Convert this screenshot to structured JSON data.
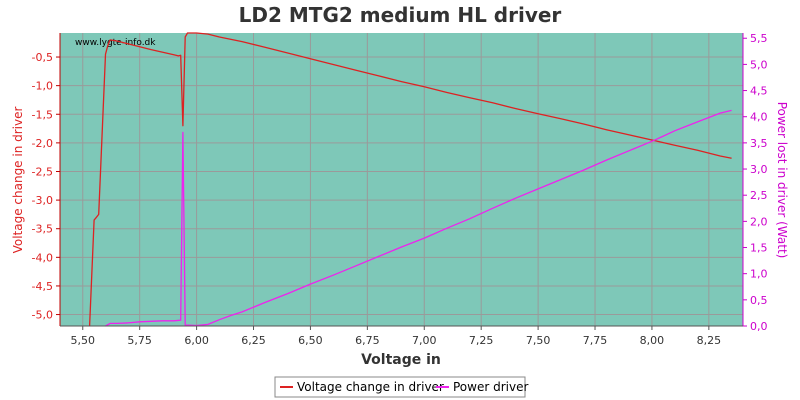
{
  "chart_data": {
    "type": "line",
    "title": "LD2 MTG2 medium HL driver",
    "watermark": "www.lygte-info.dk",
    "xlabel": "Voltage in",
    "ylabel_left": "Voltage change in driver",
    "ylabel_right": "Power lost in driver (Watt)",
    "xlim": [
      5.4,
      8.4
    ],
    "ylim_left": [
      -5.2,
      -0.08
    ],
    "ylim_right": [
      0,
      5.6
    ],
    "x_ticks": [
      "5,50",
      "5,75",
      "6,00",
      "6,25",
      "6,50",
      "6,75",
      "7,00",
      "7,25",
      "7,50",
      "7,75",
      "8,00",
      "8,25"
    ],
    "y_left_ticks": [
      "-0,5",
      "-1,0",
      "-1,5",
      "-2,0",
      "-2,5",
      "-3,0",
      "-3,5",
      "-4,0",
      "-4,5",
      "-5,0"
    ],
    "y_right_ticks": [
      "0,0",
      "0,5",
      "1,0",
      "1,5",
      "2,0",
      "2,5",
      "3,0",
      "3,5",
      "4,0",
      "4,5",
      "5,0",
      "5,5"
    ],
    "plot_bg": "#7ec8b8",
    "grid": true,
    "legend_position": "bottom",
    "series": [
      {
        "name": "Voltage change in driver",
        "axis": "left",
        "color": "#dd2222",
        "x": [
          5.53,
          5.55,
          5.56,
          5.57,
          5.6,
          5.61,
          5.62,
          5.65,
          5.7,
          5.8,
          5.9,
          5.92,
          5.93,
          5.94,
          5.95,
          5.96,
          6.0,
          6.05,
          6.1,
          6.2,
          6.3,
          6.4,
          6.5,
          6.6,
          6.7,
          6.8,
          6.9,
          7.0,
          7.1,
          7.2,
          7.3,
          7.4,
          7.5,
          7.6,
          7.7,
          7.8,
          7.9,
          8.0,
          8.1,
          8.2,
          8.3,
          8.35
        ],
        "y": [
          -5.2,
          -3.35,
          -3.3,
          -3.25,
          -0.45,
          -0.3,
          -0.2,
          -0.22,
          -0.27,
          -0.37,
          -0.46,
          -0.48,
          -0.47,
          -1.7,
          -0.15,
          -0.08,
          -0.08,
          -0.1,
          -0.15,
          -0.23,
          -0.33,
          -0.43,
          -0.53,
          -0.63,
          -0.73,
          -0.83,
          -0.93,
          -1.02,
          -1.12,
          -1.21,
          -1.3,
          -1.4,
          -1.49,
          -1.58,
          -1.67,
          -1.77,
          -1.86,
          -1.95,
          -2.04,
          -2.13,
          -2.23,
          -2.27
        ]
      },
      {
        "name": "Power driver",
        "axis": "right",
        "color": "#ee22ee",
        "x": [
          5.6,
          5.62,
          5.65,
          5.7,
          5.75,
          5.8,
          5.85,
          5.9,
          5.93,
          5.94,
          5.95,
          6.0,
          6.05,
          6.1,
          6.15,
          6.2,
          6.3,
          6.4,
          6.5,
          6.6,
          6.7,
          6.8,
          6.9,
          7.0,
          7.1,
          7.2,
          7.3,
          7.4,
          7.5,
          7.6,
          7.7,
          7.8,
          7.9,
          8.0,
          8.05,
          8.1,
          8.2,
          8.3,
          8.35
        ],
        "y": [
          0.0,
          0.05,
          0.05,
          0.06,
          0.08,
          0.09,
          0.1,
          0.1,
          0.11,
          3.7,
          0.02,
          0.01,
          0.03,
          0.12,
          0.2,
          0.27,
          0.45,
          0.62,
          0.8,
          0.97,
          1.15,
          1.33,
          1.51,
          1.68,
          1.87,
          2.05,
          2.25,
          2.44,
          2.62,
          2.8,
          2.98,
          3.17,
          3.35,
          3.53,
          3.63,
          3.73,
          3.9,
          4.07,
          4.12
        ]
      }
    ]
  }
}
